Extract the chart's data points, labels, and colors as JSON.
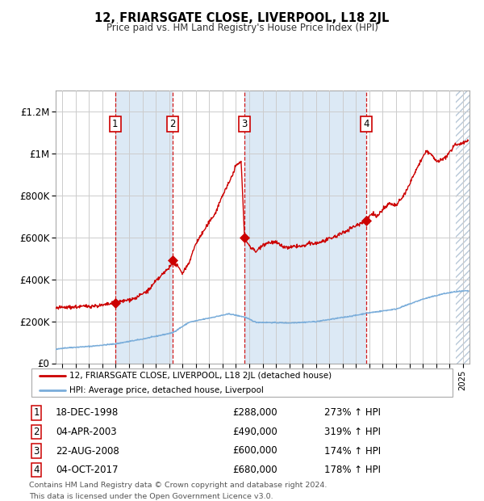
{
  "title": "12, FRIARSGATE CLOSE, LIVERPOOL, L18 2JL",
  "subtitle": "Price paid vs. HM Land Registry's House Price Index (HPI)",
  "ylim": [
    0,
    1300000
  ],
  "yticks": [
    0,
    200000,
    400000,
    600000,
    800000,
    1000000,
    1200000
  ],
  "ytick_labels": [
    "£0",
    "£200K",
    "£400K",
    "£600K",
    "£800K",
    "£1M",
    "£1.2M"
  ],
  "xlim_start": 1994.5,
  "xlim_end": 2025.5,
  "sale_dates": [
    1998.96,
    2003.26,
    2008.64,
    2017.76
  ],
  "sale_prices": [
    288000,
    490000,
    600000,
    680000
  ],
  "sale_labels": [
    "1",
    "2",
    "3",
    "4"
  ],
  "sale_date_strings": [
    "18-DEC-1998",
    "04-APR-2003",
    "22-AUG-2008",
    "04-OCT-2017"
  ],
  "sale_price_strings": [
    "£288,000",
    "£490,000",
    "£600,000",
    "£680,000"
  ],
  "sale_hpi_strings": [
    "273% ↑ HPI",
    "319% ↑ HPI",
    "174% ↑ HPI",
    "178% ↑ HPI"
  ],
  "property_color": "#cc0000",
  "hpi_color": "#7aadda",
  "background_color": "#ffffff",
  "plot_bg_color": "#ffffff",
  "col_band_color": "#dce9f5",
  "grid_color": "#cccccc",
  "dashed_line_color": "#cc0000",
  "legend_line1": "12, FRIARSGATE CLOSE, LIVERPOOL, L18 2JL (detached house)",
  "legend_line2": "HPI: Average price, detached house, Liverpool",
  "footer_line1": "Contains HM Land Registry data © Crown copyright and database right 2024.",
  "footer_line2": "This data is licensed under the Open Government Licence v3.0.",
  "hatch_start": 2024.5
}
